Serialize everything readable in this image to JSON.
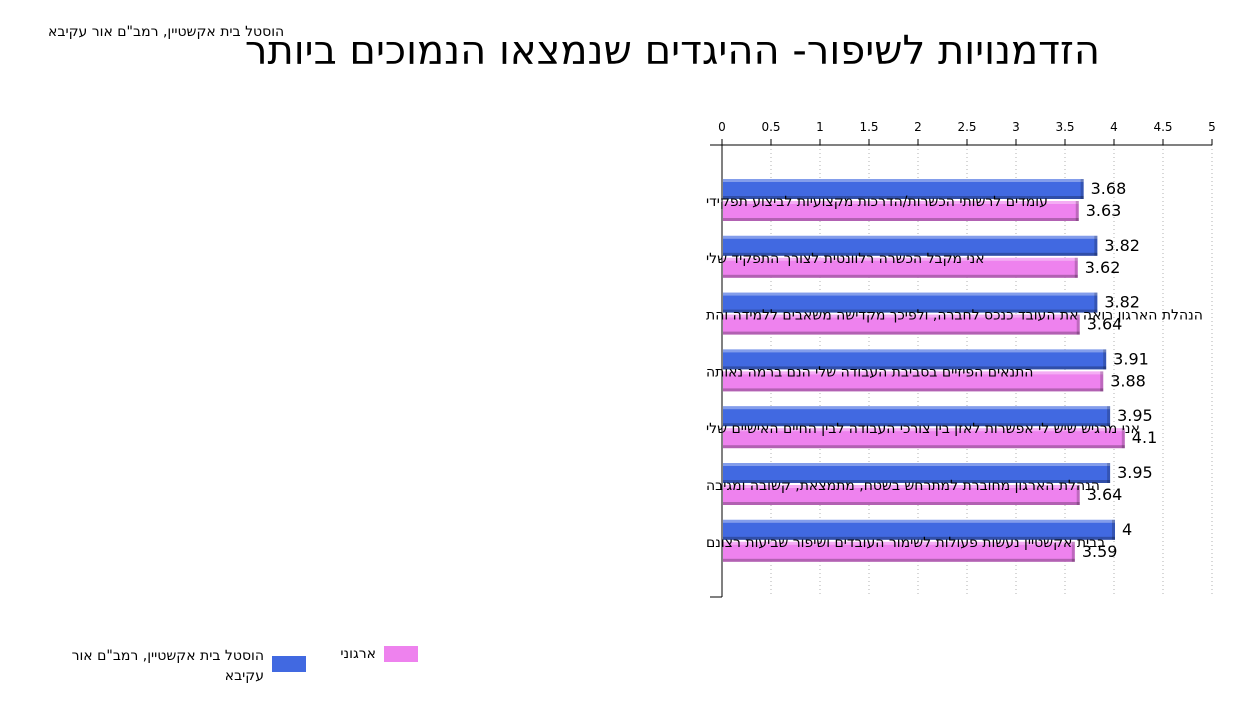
{
  "subtitle": "הוסטל בית אקשטיין, רמב\"ם אור עקיבא",
  "chart_data": {
    "type": "bar",
    "orientation": "horizontal",
    "title": "הזדמנויות לשיפור- ההיגדים שנמצאו הנמוכים ביותר",
    "categories": [
      "עומדים לרשותי הכשרות/הדרכות מקצועיות לביצוע תפקידי",
      "אני מקבל הכשרה רלוונטית לצורך התפקיד שלי",
      "הנהלת הארגון רואה את העובד כנכס לחברה, ולפיכך מקדישה משאבים ללמידה והת",
      "התנאים הפיזיים בסביבת העבודה שלי הנם ברמה נאותה",
      "אני מרגיש שיש לי אפשרות לאזן בין צורכי העבודה לבין החיים האישיים שלי",
      "הנהלת הארגון מחוברת למתרחש בשטח, מתמצאת, קשובה ומגיבה",
      "בבית אקשטיין נעשות פעולות לשימור העובדים ושיפור שביעות רצונם"
    ],
    "series": [
      {
        "name": "הוסטל בית אקשטיין, רמב\"ם אור עקיבא",
        "color": "#4169e1",
        "values": [
          3.68,
          3.82,
          3.82,
          3.91,
          3.95,
          3.95,
          4
        ]
      },
      {
        "name": "ארגוני",
        "color": "#ee82ee",
        "values": [
          3.63,
          3.62,
          3.64,
          3.88,
          4.1,
          3.64,
          3.59
        ]
      }
    ],
    "xlim": [
      0,
      5
    ],
    "ticks": [
      "0",
      "0.5",
      "1",
      "1.5",
      "2",
      "2.5",
      "3",
      "3.5",
      "4",
      "4.5",
      "5"
    ],
    "grid": true,
    "legend_position": "bottom-left"
  }
}
